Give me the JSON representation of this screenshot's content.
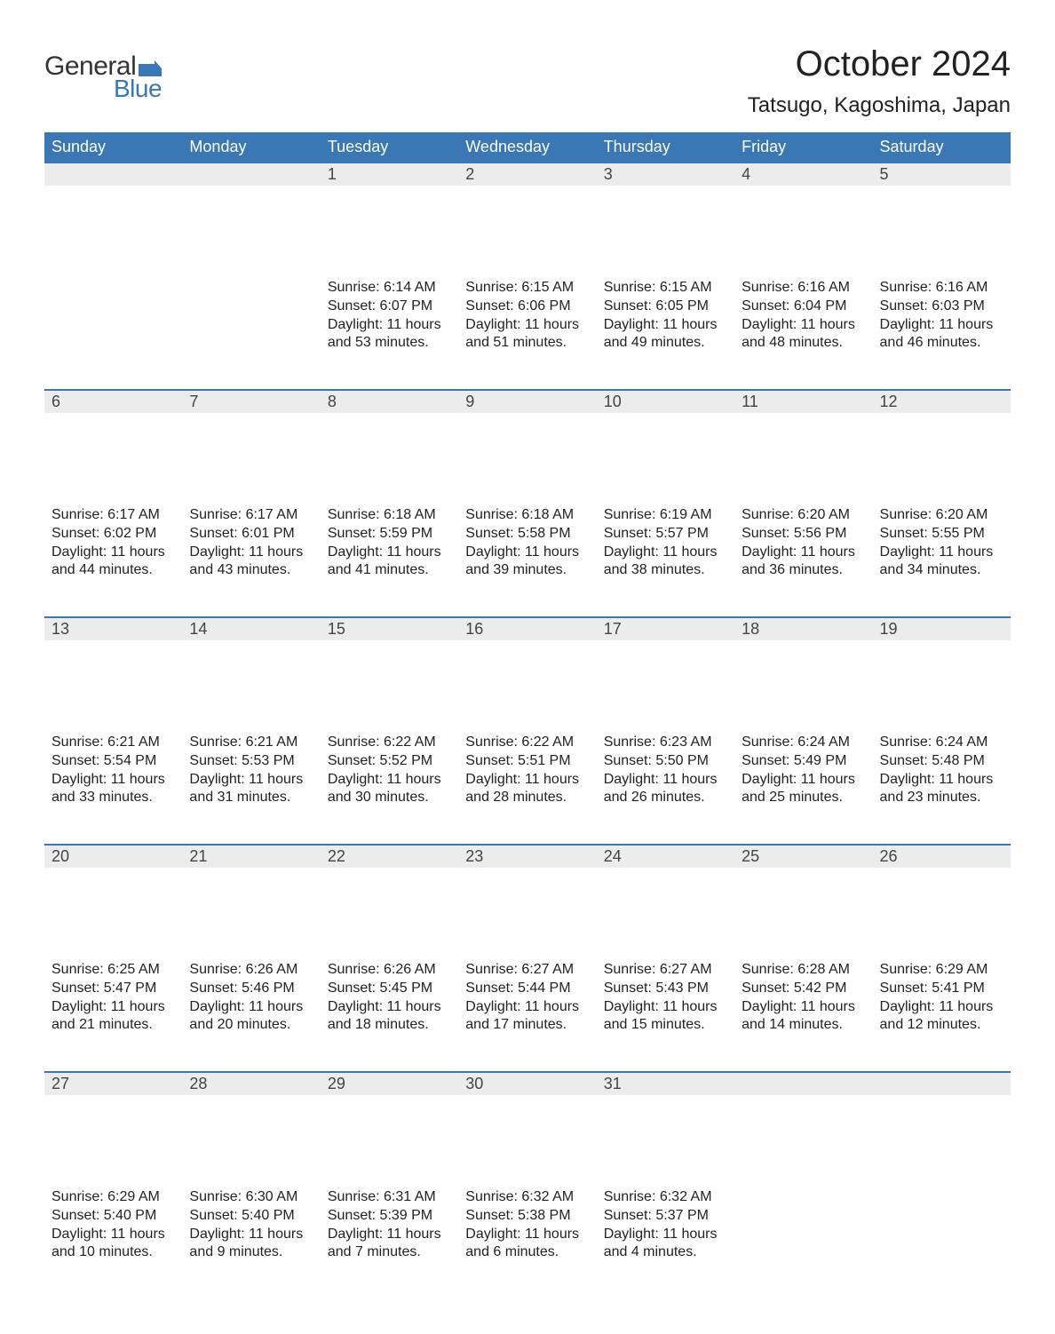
{
  "logo": {
    "text1": "General",
    "text2": "Blue",
    "color_general": "#333333",
    "color_blue": "#3a77b5",
    "flag_color": "#3a77b5"
  },
  "title": "October 2024",
  "location": "Tatsugo, Kagoshima, Japan",
  "colors": {
    "header_bg": "#3a77b5",
    "header_text": "#ffffff",
    "daynum_bg": "#ececec",
    "daynum_border": "#3a77b5",
    "body_text": "#222222",
    "background": "#ffffff"
  },
  "fonts": {
    "title_size": 40,
    "location_size": 24,
    "header_size": 18,
    "daynum_size": 18,
    "content_size": 16
  },
  "dayHeaders": [
    "Sunday",
    "Monday",
    "Tuesday",
    "Wednesday",
    "Thursday",
    "Friday",
    "Saturday"
  ],
  "weeks": [
    [
      {
        "day": "",
        "sunrise": "",
        "sunset": "",
        "daylight": ""
      },
      {
        "day": "",
        "sunrise": "",
        "sunset": "",
        "daylight": ""
      },
      {
        "day": "1",
        "sunrise": "6:14 AM",
        "sunset": "6:07 PM",
        "daylight": "11 hours and 53 minutes."
      },
      {
        "day": "2",
        "sunrise": "6:15 AM",
        "sunset": "6:06 PM",
        "daylight": "11 hours and 51 minutes."
      },
      {
        "day": "3",
        "sunrise": "6:15 AM",
        "sunset": "6:05 PM",
        "daylight": "11 hours and 49 minutes."
      },
      {
        "day": "4",
        "sunrise": "6:16 AM",
        "sunset": "6:04 PM",
        "daylight": "11 hours and 48 minutes."
      },
      {
        "day": "5",
        "sunrise": "6:16 AM",
        "sunset": "6:03 PM",
        "daylight": "11 hours and 46 minutes."
      }
    ],
    [
      {
        "day": "6",
        "sunrise": "6:17 AM",
        "sunset": "6:02 PM",
        "daylight": "11 hours and 44 minutes."
      },
      {
        "day": "7",
        "sunrise": "6:17 AM",
        "sunset": "6:01 PM",
        "daylight": "11 hours and 43 minutes."
      },
      {
        "day": "8",
        "sunrise": "6:18 AM",
        "sunset": "5:59 PM",
        "daylight": "11 hours and 41 minutes."
      },
      {
        "day": "9",
        "sunrise": "6:18 AM",
        "sunset": "5:58 PM",
        "daylight": "11 hours and 39 minutes."
      },
      {
        "day": "10",
        "sunrise": "6:19 AM",
        "sunset": "5:57 PM",
        "daylight": "11 hours and 38 minutes."
      },
      {
        "day": "11",
        "sunrise": "6:20 AM",
        "sunset": "5:56 PM",
        "daylight": "11 hours and 36 minutes."
      },
      {
        "day": "12",
        "sunrise": "6:20 AM",
        "sunset": "5:55 PM",
        "daylight": "11 hours and 34 minutes."
      }
    ],
    [
      {
        "day": "13",
        "sunrise": "6:21 AM",
        "sunset": "5:54 PM",
        "daylight": "11 hours and 33 minutes."
      },
      {
        "day": "14",
        "sunrise": "6:21 AM",
        "sunset": "5:53 PM",
        "daylight": "11 hours and 31 minutes."
      },
      {
        "day": "15",
        "sunrise": "6:22 AM",
        "sunset": "5:52 PM",
        "daylight": "11 hours and 30 minutes."
      },
      {
        "day": "16",
        "sunrise": "6:22 AM",
        "sunset": "5:51 PM",
        "daylight": "11 hours and 28 minutes."
      },
      {
        "day": "17",
        "sunrise": "6:23 AM",
        "sunset": "5:50 PM",
        "daylight": "11 hours and 26 minutes."
      },
      {
        "day": "18",
        "sunrise": "6:24 AM",
        "sunset": "5:49 PM",
        "daylight": "11 hours and 25 minutes."
      },
      {
        "day": "19",
        "sunrise": "6:24 AM",
        "sunset": "5:48 PM",
        "daylight": "11 hours and 23 minutes."
      }
    ],
    [
      {
        "day": "20",
        "sunrise": "6:25 AM",
        "sunset": "5:47 PM",
        "daylight": "11 hours and 21 minutes."
      },
      {
        "day": "21",
        "sunrise": "6:26 AM",
        "sunset": "5:46 PM",
        "daylight": "11 hours and 20 minutes."
      },
      {
        "day": "22",
        "sunrise": "6:26 AM",
        "sunset": "5:45 PM",
        "daylight": "11 hours and 18 minutes."
      },
      {
        "day": "23",
        "sunrise": "6:27 AM",
        "sunset": "5:44 PM",
        "daylight": "11 hours and 17 minutes."
      },
      {
        "day": "24",
        "sunrise": "6:27 AM",
        "sunset": "5:43 PM",
        "daylight": "11 hours and 15 minutes."
      },
      {
        "day": "25",
        "sunrise": "6:28 AM",
        "sunset": "5:42 PM",
        "daylight": "11 hours and 14 minutes."
      },
      {
        "day": "26",
        "sunrise": "6:29 AM",
        "sunset": "5:41 PM",
        "daylight": "11 hours and 12 minutes."
      }
    ],
    [
      {
        "day": "27",
        "sunrise": "6:29 AM",
        "sunset": "5:40 PM",
        "daylight": "11 hours and 10 minutes."
      },
      {
        "day": "28",
        "sunrise": "6:30 AM",
        "sunset": "5:40 PM",
        "daylight": "11 hours and 9 minutes."
      },
      {
        "day": "29",
        "sunrise": "6:31 AM",
        "sunset": "5:39 PM",
        "daylight": "11 hours and 7 minutes."
      },
      {
        "day": "30",
        "sunrise": "6:32 AM",
        "sunset": "5:38 PM",
        "daylight": "11 hours and 6 minutes."
      },
      {
        "day": "31",
        "sunrise": "6:32 AM",
        "sunset": "5:37 PM",
        "daylight": "11 hours and 4 minutes."
      },
      {
        "day": "",
        "sunrise": "",
        "sunset": "",
        "daylight": ""
      },
      {
        "day": "",
        "sunrise": "",
        "sunset": "",
        "daylight": ""
      }
    ]
  ],
  "labels": {
    "sunrise": "Sunrise: ",
    "sunset": "Sunset: ",
    "daylight": "Daylight: "
  }
}
